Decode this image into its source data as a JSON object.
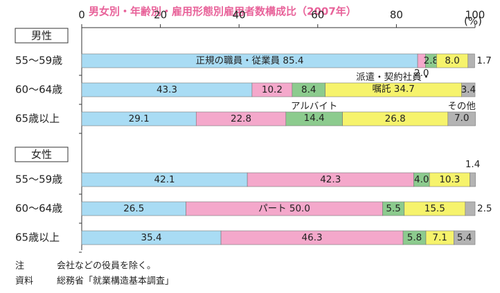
{
  "chart_data": {
    "type": "bar",
    "orientation": "horizontal",
    "stacked": true,
    "title": "男女別・年齢別・雇用形態別雇用者数構成比（2007年）",
    "unit": "(%)",
    "xlim": [
      0,
      100
    ],
    "xticks": [
      0,
      20,
      40,
      60,
      80,
      100
    ],
    "colors": [
      "#a9dcf4",
      "#f4a8cb",
      "#8ccb8e",
      "#f6f36c",
      "#b3b3b3"
    ],
    "groups": [
      {
        "label": "男性",
        "categories": [
          "55〜59歳",
          "60〜64歳",
          "65歳以上"
        ],
        "series": [
          {
            "values": [
              85.4,
              43.3,
              29.1
            ],
            "value_labels": [
              "正規の職員・従業員 85.4",
              "43.3",
              "29.1"
            ]
          },
          {
            "values": [
              2.0,
              10.2,
              22.8
            ],
            "value_labels": [
              "2.0",
              "10.2",
              "22.8"
            ]
          },
          {
            "values": [
              2.8,
              8.4,
              14.4
            ],
            "value_labels": [
              "2.8",
              "8.4",
              "アルバイト\n14.4"
            ]
          },
          {
            "values": [
              8.0,
              34.7,
              26.8
            ],
            "value_labels": [
              "8.0",
              "派遣・契約社員・\n嘱託 34.7",
              "26.8"
            ]
          },
          {
            "values": [
              1.7,
              3.4,
              7.0
            ],
            "value_labels": [
              "1.7",
              "3.4",
              "その他\n7.0"
            ]
          }
        ]
      },
      {
        "label": "女性",
        "categories": [
          "55〜59歳",
          "60〜64歳",
          "65歳以上"
        ],
        "series": [
          {
            "values": [
              42.1,
              26.5,
              35.4
            ],
            "value_labels": [
              "42.1",
              "26.5",
              "35.4"
            ]
          },
          {
            "values": [
              42.3,
              50.0,
              46.3
            ],
            "value_labels": [
              "42.3",
              "パート 50.0",
              "46.3"
            ]
          },
          {
            "values": [
              4.0,
              5.5,
              5.8
            ],
            "value_labels": [
              "4.0",
              "5.5",
              "5.8"
            ]
          },
          {
            "values": [
              10.3,
              15.5,
              7.1
            ],
            "value_labels": [
              "10.3",
              "15.5",
              "7.1"
            ]
          },
          {
            "values": [
              1.4,
              2.5,
              5.4
            ],
            "value_labels": [
              "1.4",
              "2.5",
              "5.4"
            ]
          }
        ]
      }
    ],
    "notes": [
      {
        "label": "注",
        "text": "会社などの役員を除く。"
      },
      {
        "label": "資料",
        "text": "総務省「就業構造基本調査」"
      }
    ]
  }
}
